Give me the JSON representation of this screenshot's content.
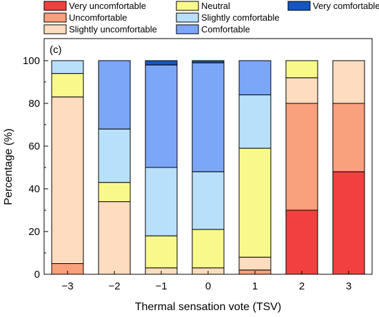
{
  "chart_data": {
    "type": "bar",
    "stacked": true,
    "panel_label": "(c)",
    "xlabel": "Thermal sensation vote (TSV)",
    "ylabel": "Percentage (%)",
    "ylim": [
      0,
      100
    ],
    "yticks": [
      "0",
      "20",
      "40",
      "60",
      "80",
      "100"
    ],
    "grid": false,
    "legend_position": "top",
    "categories": [
      "−3",
      "−2",
      "−1",
      "0",
      "1",
      "2",
      "3"
    ],
    "series": [
      {
        "name": "Very uncomfortable",
        "color": "#f24040",
        "values": [
          0,
          0,
          0,
          0,
          0,
          30,
          48
        ]
      },
      {
        "name": "Uncomfortable",
        "color": "#f9a07c",
        "values": [
          5,
          0,
          0,
          0,
          2,
          50,
          32
        ]
      },
      {
        "name": "Slightly uncomfortable",
        "color": "#fddcc0",
        "values": [
          78,
          34,
          3,
          3,
          6,
          12,
          20
        ]
      },
      {
        "name": "Neutral",
        "color": "#f9f98b",
        "values": [
          11,
          9,
          15,
          18,
          51,
          8,
          0
        ]
      },
      {
        "name": "Slightly comfortable",
        "color": "#b9e0fa",
        "values": [
          6,
          25,
          32,
          27,
          25,
          0,
          0
        ]
      },
      {
        "name": "Comfortable",
        "color": "#7ca6f8",
        "values": [
          0,
          32,
          48,
          51,
          16,
          0,
          0
        ]
      },
      {
        "name": "Very comfortable",
        "color": "#1556c2",
        "values": [
          0,
          0,
          2,
          1,
          0,
          0,
          0
        ]
      }
    ]
  }
}
